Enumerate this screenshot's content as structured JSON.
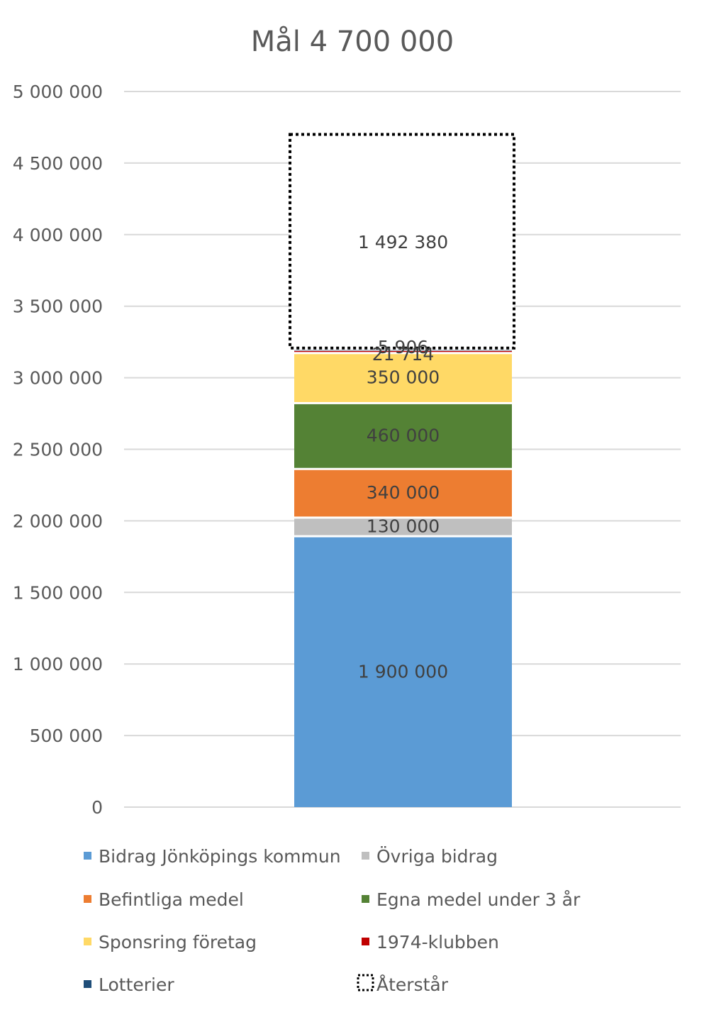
{
  "chart_data": {
    "type": "bar",
    "stacked": true,
    "title": "Mål 4 700 000",
    "xlabel": "",
    "ylabel": "",
    "ylim": [
      0,
      5000000
    ],
    "yticks": [
      0,
      500000,
      1000000,
      1500000,
      2000000,
      2500000,
      3000000,
      3500000,
      4000000,
      4500000,
      5000000
    ],
    "ytick_labels": [
      "0",
      "500 000",
      "1 000 000",
      "1 500 000",
      "2 000 000",
      "2 500 000",
      "3 000 000",
      "3 500 000",
      "4 000 000",
      "4 500 000",
      "5 000 000"
    ],
    "grid": true,
    "legend_position": "bottom",
    "series": [
      {
        "name": "Bidrag Jönköpings kommun",
        "values": [
          1900000
        ],
        "label": "1 900 000",
        "color": "#5b9bd5"
      },
      {
        "name": "Övriga bidrag",
        "values": [
          130000
        ],
        "label": "130 000",
        "color": "#bfbfbf"
      },
      {
        "name": "Befintliga medel",
        "values": [
          340000
        ],
        "label": "340 000",
        "color": "#ed7d31"
      },
      {
        "name": "Egna medel under 3 år",
        "values": [
          460000
        ],
        "label": "460 000",
        "color": "#548235"
      },
      {
        "name": "Sponsring företag",
        "values": [
          350000
        ],
        "label": "350 000",
        "color": "#ffd966"
      },
      {
        "name": "1974-klubben",
        "values": [
          21714
        ],
        "label": "21 714",
        "color": "#c00000"
      },
      {
        "name": "Lotterier",
        "values": [
          5906
        ],
        "label": "5 906",
        "color": "#1f4e79"
      },
      {
        "name": "Återstår",
        "values": [
          1492380
        ],
        "label": "1 492 380",
        "color": "#ffffff",
        "dotted_border": true
      }
    ]
  }
}
